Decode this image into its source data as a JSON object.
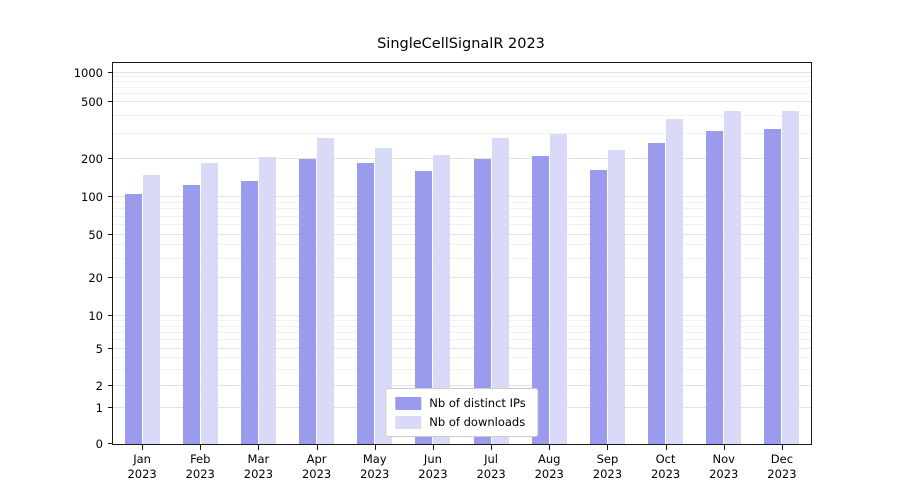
{
  "chart_data": {
    "type": "bar",
    "title": "SingleCellSignalR 2023",
    "xlabel": "",
    "ylabel": "",
    "yscale": "symlog",
    "ylim": [
      0,
      1000
    ],
    "grid": true,
    "legend_position": "bottom-center-inside",
    "yticks": [
      0,
      1,
      2,
      5,
      10,
      20,
      50,
      100,
      200,
      500,
      1000
    ],
    "categories": [
      "Jan\n2023",
      "Feb\n2023",
      "Mar\n2023",
      "Apr\n2023",
      "May\n2023",
      "Jun\n2023",
      "Jul\n2023",
      "Aug\n2023",
      "Sep\n2023",
      "Oct\n2023",
      "Nov\n2023",
      "Dec\n2023"
    ],
    "series": [
      {
        "name": "Nb of distinct IPs",
        "color": "#9b9bee",
        "values": [
          105,
          125,
          135,
          200,
          185,
          160,
          200,
          210,
          165,
          260,
          315,
          325
        ]
      },
      {
        "name": "Nb of downloads",
        "color": "#d9d9f8",
        "values": [
          150,
          185,
          205,
          280,
          240,
          215,
          280,
          300,
          230,
          380,
          430,
          430
        ]
      }
    ]
  }
}
